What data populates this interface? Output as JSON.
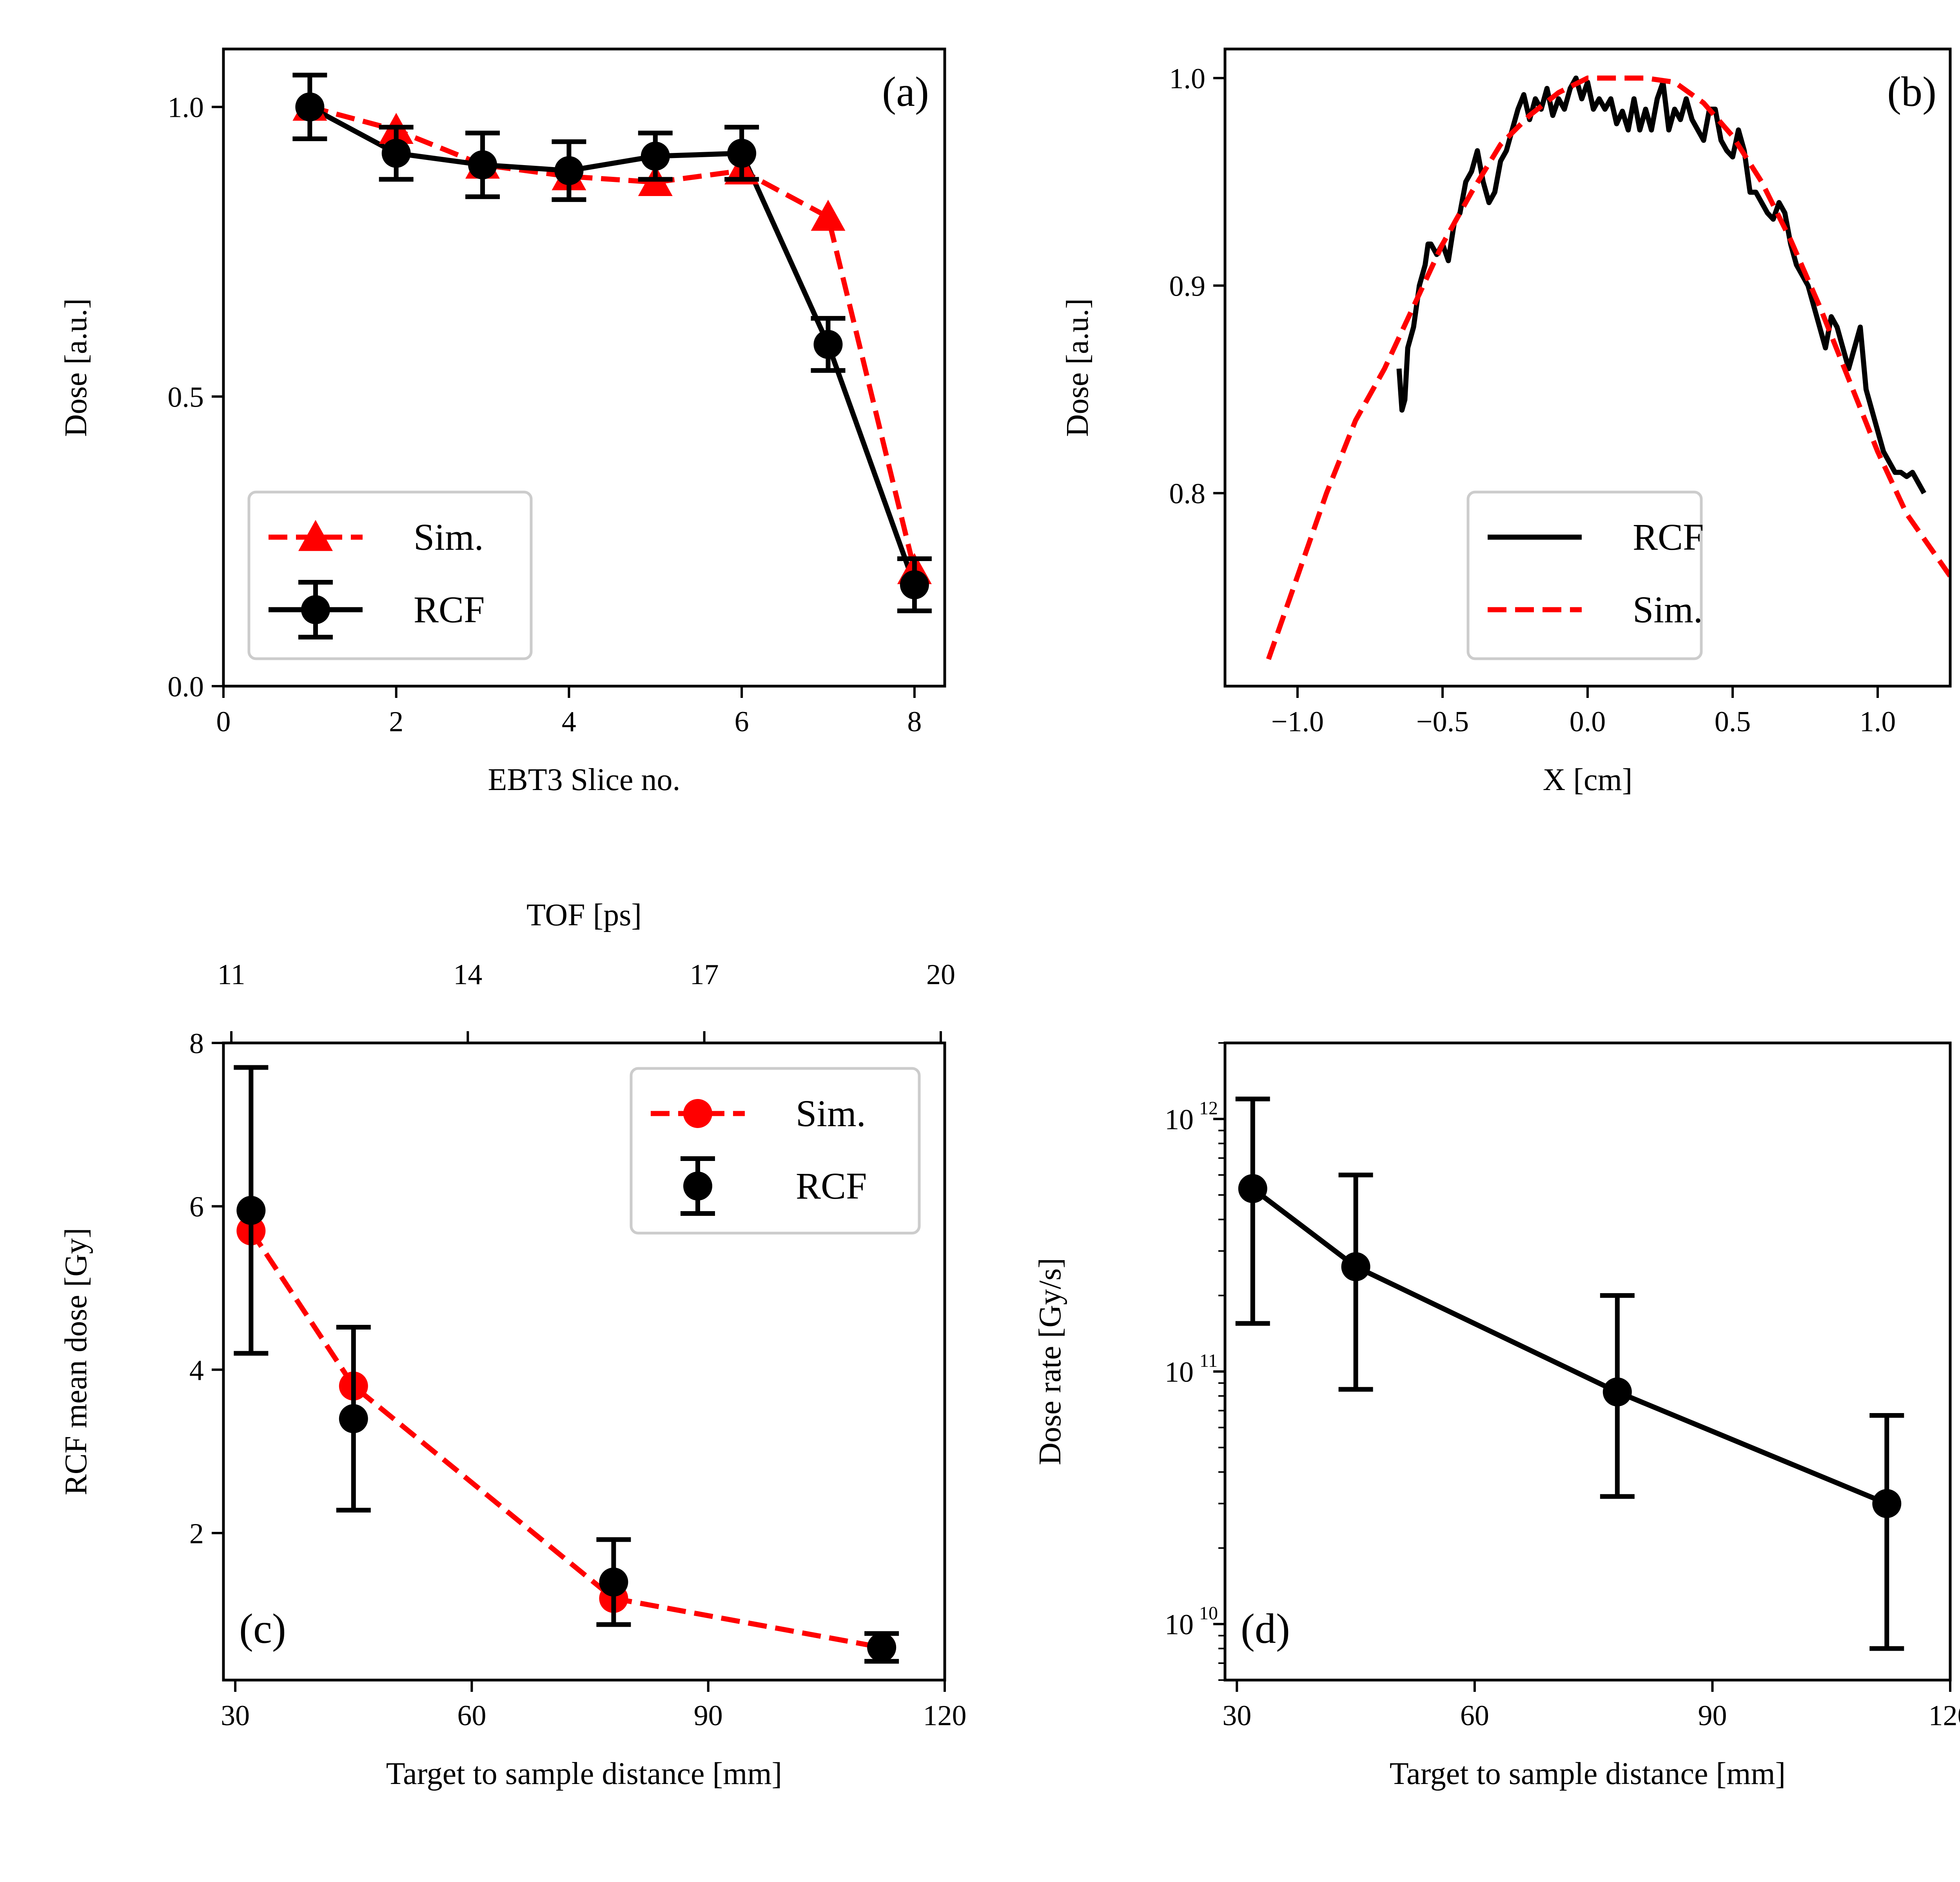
{
  "colors": {
    "sim": "#ff0000",
    "rcf": "#000000",
    "legend_border": "#cccccc",
    "axis": "#000000"
  },
  "chart_data": [
    {
      "id": "a",
      "type": "line",
      "panel_label": "(a)",
      "xlabel": "EBT3 Slice no.",
      "ylabel": "Dose [a.u.]",
      "xlim": [
        0,
        8.35
      ],
      "ylim": [
        0,
        1.1
      ],
      "xticks": [
        0,
        2,
        4,
        6,
        8
      ],
      "xtick_labels": [
        "0",
        "2",
        "4",
        "6",
        "8"
      ],
      "yticks": [
        0,
        0.5,
        1.0
      ],
      "ytick_labels": [
        "0.0",
        "0.5",
        "1.0"
      ],
      "legend_position": "lower-left",
      "legend": [
        {
          "key": "sim",
          "label": "Sim.",
          "marker": "triangle",
          "dashed": true,
          "errorbar": false
        },
        {
          "key": "rcf",
          "label": "RCF",
          "marker": "circle",
          "dashed": false,
          "errorbar": true
        }
      ],
      "series": [
        {
          "name": "Sim.",
          "key": "sim",
          "dashed": true,
          "marker": "triangle",
          "x": [
            1,
            2,
            3,
            4,
            5,
            6,
            7,
            8
          ],
          "y": [
            1.0,
            0.96,
            0.9,
            0.88,
            0.87,
            0.89,
            0.81,
            0.2
          ]
        },
        {
          "name": "RCF",
          "key": "rcf",
          "dashed": false,
          "marker": "circle",
          "x": [
            1,
            2,
            3,
            4,
            5,
            6,
            7,
            8
          ],
          "y": [
            1.0,
            0.92,
            0.9,
            0.89,
            0.915,
            0.92,
            0.59,
            0.175
          ],
          "yerr": [
            0.055,
            0.045,
            0.055,
            0.05,
            0.04,
            0.045,
            0.045,
            0.045
          ]
        }
      ]
    },
    {
      "id": "b",
      "type": "line",
      "panel_label": "(b)",
      "xlabel": "X [cm]",
      "ylabel": "Dose [a.u.]",
      "xlim": [
        -1.25,
        1.25
      ],
      "ylim": [
        0.707,
        1.014
      ],
      "xticks": [
        -1.0,
        -0.5,
        0.0,
        0.5,
        1.0
      ],
      "xtick_labels": [
        "−1.0",
        "−0.5",
        "0.0",
        "0.5",
        "1.0"
      ],
      "yticks": [
        0.8,
        0.9,
        1.0
      ],
      "ytick_labels": [
        "0.8",
        "0.9",
        "1.0"
      ],
      "legend_position": "lower-center",
      "legend": [
        {
          "key": "rcf",
          "label": "RCF",
          "dashed": false
        },
        {
          "key": "sim",
          "label": "Sim.",
          "dashed": true
        }
      ],
      "series": [
        {
          "name": "RCF",
          "key": "rcf",
          "dashed": false,
          "x": [
            -0.65,
            -0.64,
            -0.63,
            -0.62,
            -0.61,
            -0.6,
            -0.59,
            -0.58,
            -0.57,
            -0.56,
            -0.55,
            -0.54,
            -0.52,
            -0.5,
            -0.48,
            -0.46,
            -0.44,
            -0.42,
            -0.4,
            -0.38,
            -0.36,
            -0.34,
            -0.32,
            -0.3,
            -0.28,
            -0.26,
            -0.24,
            -0.22,
            -0.2,
            -0.18,
            -0.16,
            -0.14,
            -0.12,
            -0.1,
            -0.08,
            -0.06,
            -0.04,
            -0.02,
            0.0,
            0.02,
            0.04,
            0.06,
            0.08,
            0.1,
            0.12,
            0.14,
            0.16,
            0.18,
            0.2,
            0.22,
            0.24,
            0.26,
            0.28,
            0.3,
            0.32,
            0.34,
            0.36,
            0.38,
            0.4,
            0.42,
            0.44,
            0.46,
            0.48,
            0.5,
            0.52,
            0.54,
            0.56,
            0.58,
            0.6,
            0.62,
            0.64,
            0.66,
            0.68,
            0.7,
            0.72,
            0.74,
            0.76,
            0.78,
            0.8,
            0.82,
            0.84,
            0.86,
            0.88,
            0.9,
            0.92,
            0.94,
            0.96,
            0.98,
            1.0,
            1.02,
            1.04,
            1.06,
            1.08,
            1.1,
            1.12,
            1.14,
            1.16
          ],
          "y": [
            0.86,
            0.84,
            0.845,
            0.87,
            0.875,
            0.88,
            0.89,
            0.9,
            0.905,
            0.91,
            0.92,
            0.92,
            0.915,
            0.92,
            0.912,
            0.93,
            0.935,
            0.95,
            0.955,
            0.965,
            0.95,
            0.94,
            0.945,
            0.96,
            0.965,
            0.975,
            0.985,
            0.992,
            0.98,
            0.99,
            0.985,
            0.995,
            0.982,
            0.99,
            0.985,
            0.995,
            1.0,
            0.99,
            0.998,
            0.985,
            0.99,
            0.985,
            0.99,
            0.978,
            0.984,
            0.975,
            0.99,
            0.975,
            0.985,
            0.975,
            0.99,
            0.998,
            0.975,
            0.985,
            0.98,
            0.99,
            0.98,
            0.975,
            0.97,
            0.985,
            0.985,
            0.97,
            0.965,
            0.962,
            0.975,
            0.965,
            0.945,
            0.945,
            0.94,
            0.935,
            0.932,
            0.94,
            0.935,
            0.92,
            0.91,
            0.905,
            0.9,
            0.89,
            0.88,
            0.87,
            0.885,
            0.88,
            0.87,
            0.86,
            0.87,
            0.88,
            0.85,
            0.84,
            0.83,
            0.82,
            0.815,
            0.81,
            0.81,
            0.808,
            0.81,
            0.805,
            0.8
          ]
        },
        {
          "name": "Sim.",
          "key": "sim",
          "dashed": true,
          "x": [
            -1.1,
            -1.0,
            -0.9,
            -0.8,
            -0.7,
            -0.6,
            -0.5,
            -0.4,
            -0.3,
            -0.2,
            -0.1,
            0.0,
            0.1,
            0.2,
            0.3,
            0.4,
            0.5,
            0.6,
            0.7,
            0.8,
            0.9,
            1.0,
            1.1,
            1.25
          ],
          "y": [
            0.72,
            0.76,
            0.8,
            0.835,
            0.86,
            0.89,
            0.92,
            0.945,
            0.968,
            0.982,
            0.993,
            1.0,
            1.0,
            1.0,
            0.998,
            0.988,
            0.972,
            0.95,
            0.922,
            0.89,
            0.855,
            0.82,
            0.79,
            0.76
          ]
        }
      ]
    },
    {
      "id": "c",
      "type": "line",
      "panel_label": "(c)",
      "xlabel": "Target to sample distance [mm]",
      "ylabel": "RCF mean dose [Gy]",
      "top_xlabel": "TOF [ps]",
      "xlim": [
        28.5,
        120
      ],
      "ylim": [
        0.2,
        8
      ],
      "xticks": [
        30,
        60,
        90,
        120
      ],
      "xtick_labels": [
        "30",
        "60",
        "90",
        "120"
      ],
      "yticks": [
        2,
        4,
        6,
        8
      ],
      "ytick_labels": [
        "2",
        "4",
        "6",
        "8"
      ],
      "top_ticks_at_x": [
        29.5,
        59.5,
        89.5,
        119.5
      ],
      "top_tick_labels": [
        "11",
        "14",
        "17",
        "20"
      ],
      "legend_position": "upper-right",
      "legend": [
        {
          "key": "sim",
          "label": "Sim.",
          "marker": "circle",
          "dashed": true,
          "errorbar": false
        },
        {
          "key": "rcf",
          "label": "RCF",
          "marker": "circle",
          "dashed": false,
          "errorbar": true,
          "line": false
        }
      ],
      "series": [
        {
          "name": "Sim.",
          "key": "sim",
          "dashed": true,
          "marker": "circle",
          "x": [
            32,
            45,
            78,
            112
          ],
          "y": [
            5.7,
            3.8,
            1.2,
            0.6
          ]
        },
        {
          "name": "RCF",
          "key": "rcf",
          "line": false,
          "marker": "circle",
          "x": [
            32,
            45,
            78,
            112
          ],
          "y": [
            5.95,
            3.4,
            1.4,
            0.6
          ],
          "yerr": [
            1.75,
            1.12,
            0.52,
            0.17
          ]
        }
      ]
    },
    {
      "id": "d",
      "type": "line",
      "panel_label": "(d)",
      "xlabel": "Target to sample distance [mm]",
      "ylabel": "Dose rate [Gy/s]",
      "yscale": "log",
      "xlim": [
        28.5,
        120
      ],
      "ylim": [
        6000000000.0,
        2000000000000.0
      ],
      "xticks": [
        30,
        60,
        90,
        120
      ],
      "xtick_labels": [
        "30",
        "60",
        "90",
        "120"
      ],
      "yticks": [
        10000000000.0,
        100000000000.0,
        1000000000000.0
      ],
      "ytick_labels": [
        {
          "base": "10",
          "exp": "10"
        },
        {
          "base": "10",
          "exp": "11"
        },
        {
          "base": "10",
          "exp": "12"
        }
      ],
      "series": [
        {
          "name": "RCF",
          "key": "rcf",
          "dashed": false,
          "marker": "circle",
          "x": [
            32,
            45,
            78,
            112
          ],
          "y": [
            530000000000.0,
            260000000000.0,
            83000000000.0,
            30000000000.0
          ],
          "yerr_low": [
            155000000000.0,
            85000000000.0,
            32000000000.0,
            8000000000.0
          ],
          "yerr_high": [
            1200000000000.0,
            600000000000.0,
            200000000000.0,
            67000000000.0
          ]
        }
      ]
    }
  ]
}
